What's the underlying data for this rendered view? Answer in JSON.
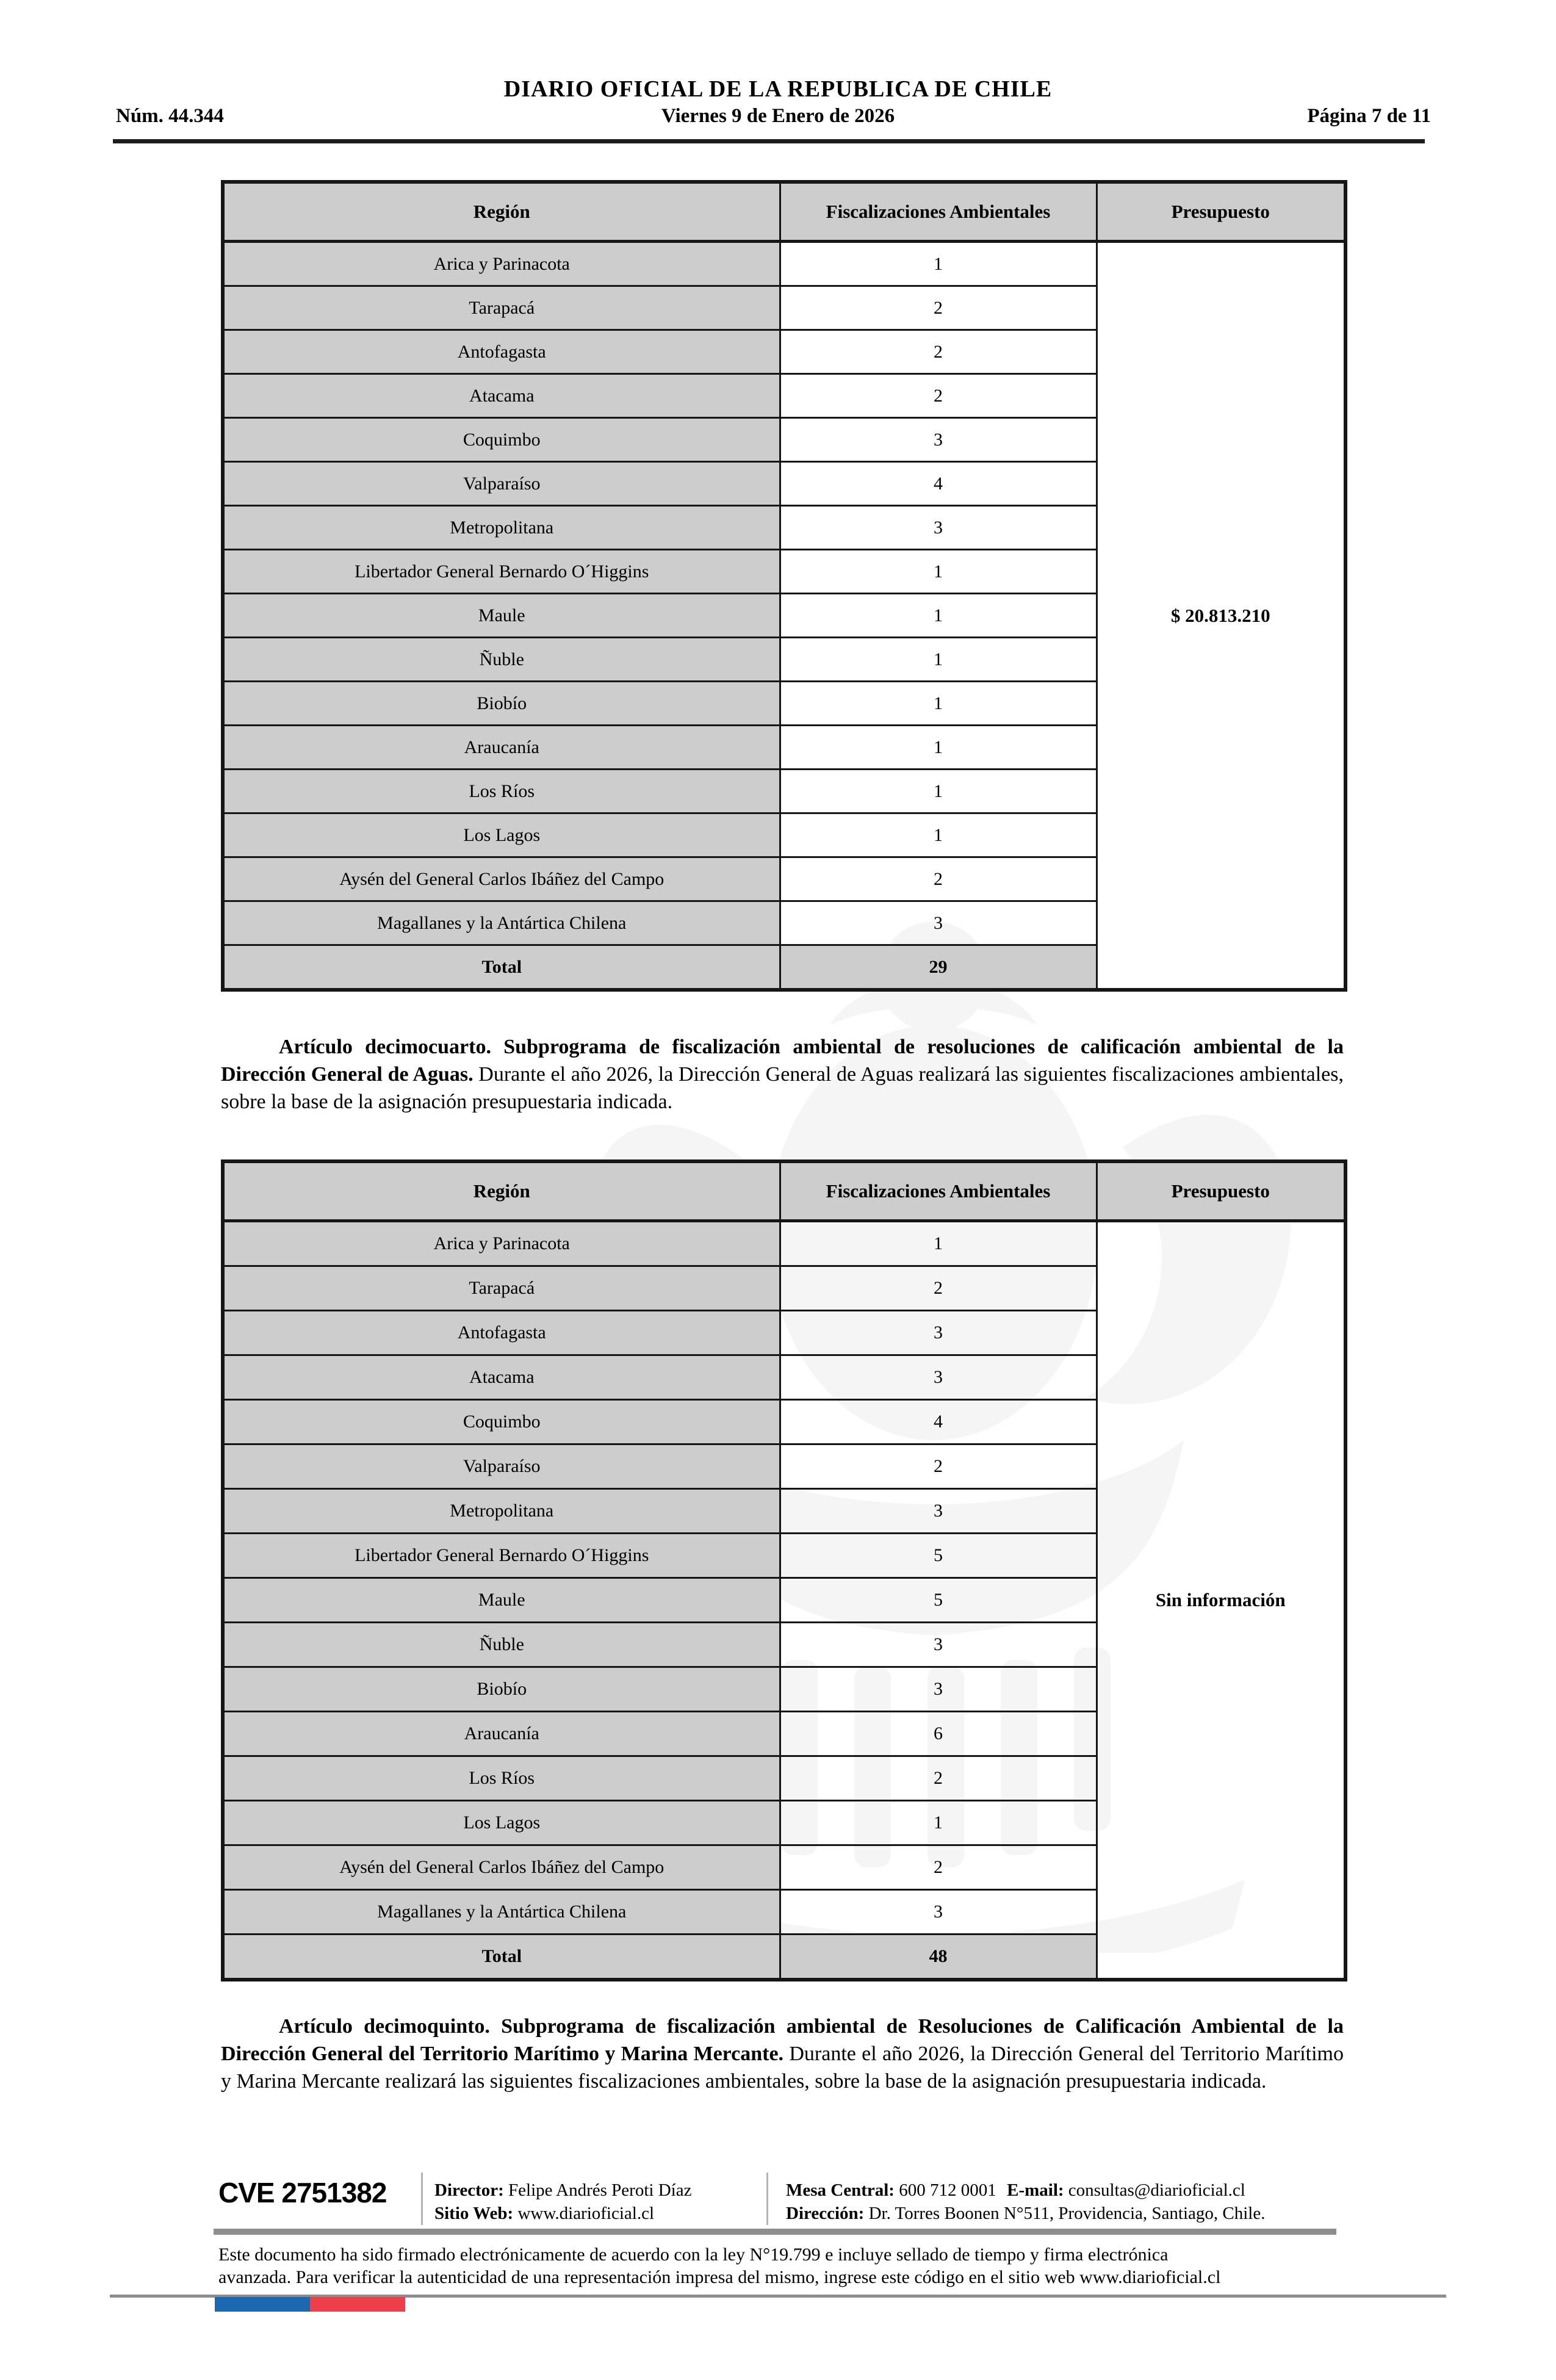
{
  "colors": {
    "rule_dark": "#1d1d1d",
    "bar_gray": "#8d8d8d",
    "cell_gray": "#cdcdcd",
    "flag_blue": "#1c69b2",
    "flag_red": "#ed3e49"
  },
  "header": {
    "title": "DIARIO OFICIAL DE LA REPUBLICA DE CHILE",
    "issue": "Núm. 44.344",
    "date": "Viernes 9 de Enero de 2026",
    "page": "Página 7 de 11"
  },
  "tables": [
    {
      "headers": [
        "Región",
        "Fiscalizaciones Ambientales",
        "Presupuesto"
      ],
      "rows": [
        [
          "Arica y Parinacota",
          "1"
        ],
        [
          "Tarapacá",
          "2"
        ],
        [
          "Antofagasta",
          "2"
        ],
        [
          "Atacama",
          "2"
        ],
        [
          "Coquimbo",
          "3"
        ],
        [
          "Valparaíso",
          "4"
        ],
        [
          "Metropolitana",
          "3"
        ],
        [
          "Libertador General Bernardo O´Higgins",
          "1"
        ],
        [
          "Maule",
          "1"
        ],
        [
          "Ñuble",
          "1"
        ],
        [
          "Biobío",
          "1"
        ],
        [
          "Araucanía",
          "1"
        ],
        [
          "Los Ríos",
          "1"
        ],
        [
          "Los Lagos",
          "1"
        ],
        [
          "Aysén del General Carlos Ibáñez del Campo",
          "2"
        ],
        [
          "Magallanes y la Antártica Chilena",
          "3"
        ]
      ],
      "total_label": "Total",
      "total": "29",
      "budget": "$ 20.813.210"
    },
    {
      "headers": [
        "Región",
        "Fiscalizaciones Ambientales",
        "Presupuesto"
      ],
      "rows": [
        [
          "Arica y Parinacota",
          "1"
        ],
        [
          "Tarapacá",
          "2"
        ],
        [
          "Antofagasta",
          "3"
        ],
        [
          "Atacama",
          "3"
        ],
        [
          "Coquimbo",
          "4"
        ],
        [
          "Valparaíso",
          "2"
        ],
        [
          "Metropolitana",
          "3"
        ],
        [
          "Libertador General Bernardo O´Higgins",
          "5"
        ],
        [
          "Maule",
          "5"
        ],
        [
          "Ñuble",
          "3"
        ],
        [
          "Biobío",
          "3"
        ],
        [
          "Araucanía",
          "6"
        ],
        [
          "Los Ríos",
          "2"
        ],
        [
          "Los Lagos",
          "1"
        ],
        [
          "Aysén del General Carlos Ibáñez del Campo",
          "2"
        ],
        [
          "Magallanes y la Antártica Chilena",
          "3"
        ]
      ],
      "total_label": "Total",
      "total": "48",
      "budget": "Sin información"
    }
  ],
  "articles": [
    {
      "lead": "Artículo decimocuarto. Subprograma de fiscalización ambiental de resoluciones de calificación ambiental de la Dirección General de Aguas.",
      "body": " Durante el año 2026, la Dirección General de Aguas realizará las siguientes fiscalizaciones ambientales, sobre la base de la asignación presupuestaria indicada."
    },
    {
      "lead": "Artículo decimoquinto. Subprograma de fiscalización ambiental de Resoluciones de Calificación Ambiental de la Dirección General del Territorio Marítimo y Marina Mercante.",
      "body": " Durante el año 2026, la Dirección General del Territorio Marítimo y Marina Mercante realizará las siguientes fiscalizaciones ambientales, sobre la base de la asignación presupuestaria indicada."
    }
  ],
  "footer": {
    "cve": "CVE 2751382",
    "director_label": "Director:",
    "director": "Felipe Andrés Peroti Díaz",
    "web_label": "Sitio Web:",
    "web": "www.diarioficial.cl",
    "phone_label": "Mesa Central:",
    "phone": "600 712 0001",
    "email_label": "E-mail:",
    "email": "consultas@diarioficial.cl",
    "address_label": "Dirección:",
    "address": "Dr. Torres Boonen N°511, Providencia, Santiago, Chile.",
    "legal1": "Este documento ha sido firmado electrónicamente de acuerdo con la ley N°19.799 e incluye sellado de tiempo y firma electrónica",
    "legal2": "avanzada. Para verificar la autenticidad de una representación impresa del mismo, ingrese este código en el sitio web www.diarioficial.cl"
  }
}
